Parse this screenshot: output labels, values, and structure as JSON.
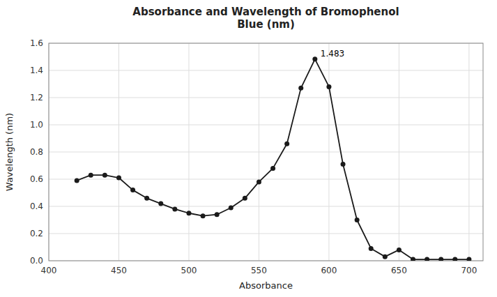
{
  "chart_data": {
    "type": "line",
    "title": "Absorbance and Wavelength of Bromophenol\nBlue (nm)",
    "x_label": "Absorbance",
    "y_label": "Wavelength (nm)",
    "x": [
      420,
      430,
      440,
      450,
      460,
      470,
      480,
      490,
      500,
      510,
      520,
      530,
      540,
      550,
      560,
      570,
      580,
      590,
      600,
      610,
      620,
      630,
      640,
      650,
      660,
      670,
      680,
      690,
      700
    ],
    "values": [
      0.59,
      0.63,
      0.63,
      0.61,
      0.52,
      0.46,
      0.42,
      0.38,
      0.35,
      0.33,
      0.34,
      0.39,
      0.46,
      0.58,
      0.68,
      0.86,
      1.27,
      1.483,
      1.28,
      0.71,
      0.3,
      0.09,
      0.03,
      0.08,
      0.01,
      0.01,
      0.01,
      0.01,
      0.01
    ],
    "color": "#1a1a1a",
    "marker": "circle",
    "annotations": [
      {
        "text": "1.483",
        "x": 590,
        "y": 1.483
      }
    ],
    "xlim": [
      400,
      710
    ],
    "ylim": [
      0,
      1.6
    ],
    "xticks": [
      400,
      450,
      500,
      550,
      600,
      650,
      700
    ],
    "yticks": [
      {
        "value": 0,
        "label": "0.0"
      },
      0.2,
      0.4,
      0.6,
      0.8,
      {
        "value": 1,
        "label": "1.0"
      },
      1.2,
      1.4,
      1.6
    ],
    "grid": true
  }
}
